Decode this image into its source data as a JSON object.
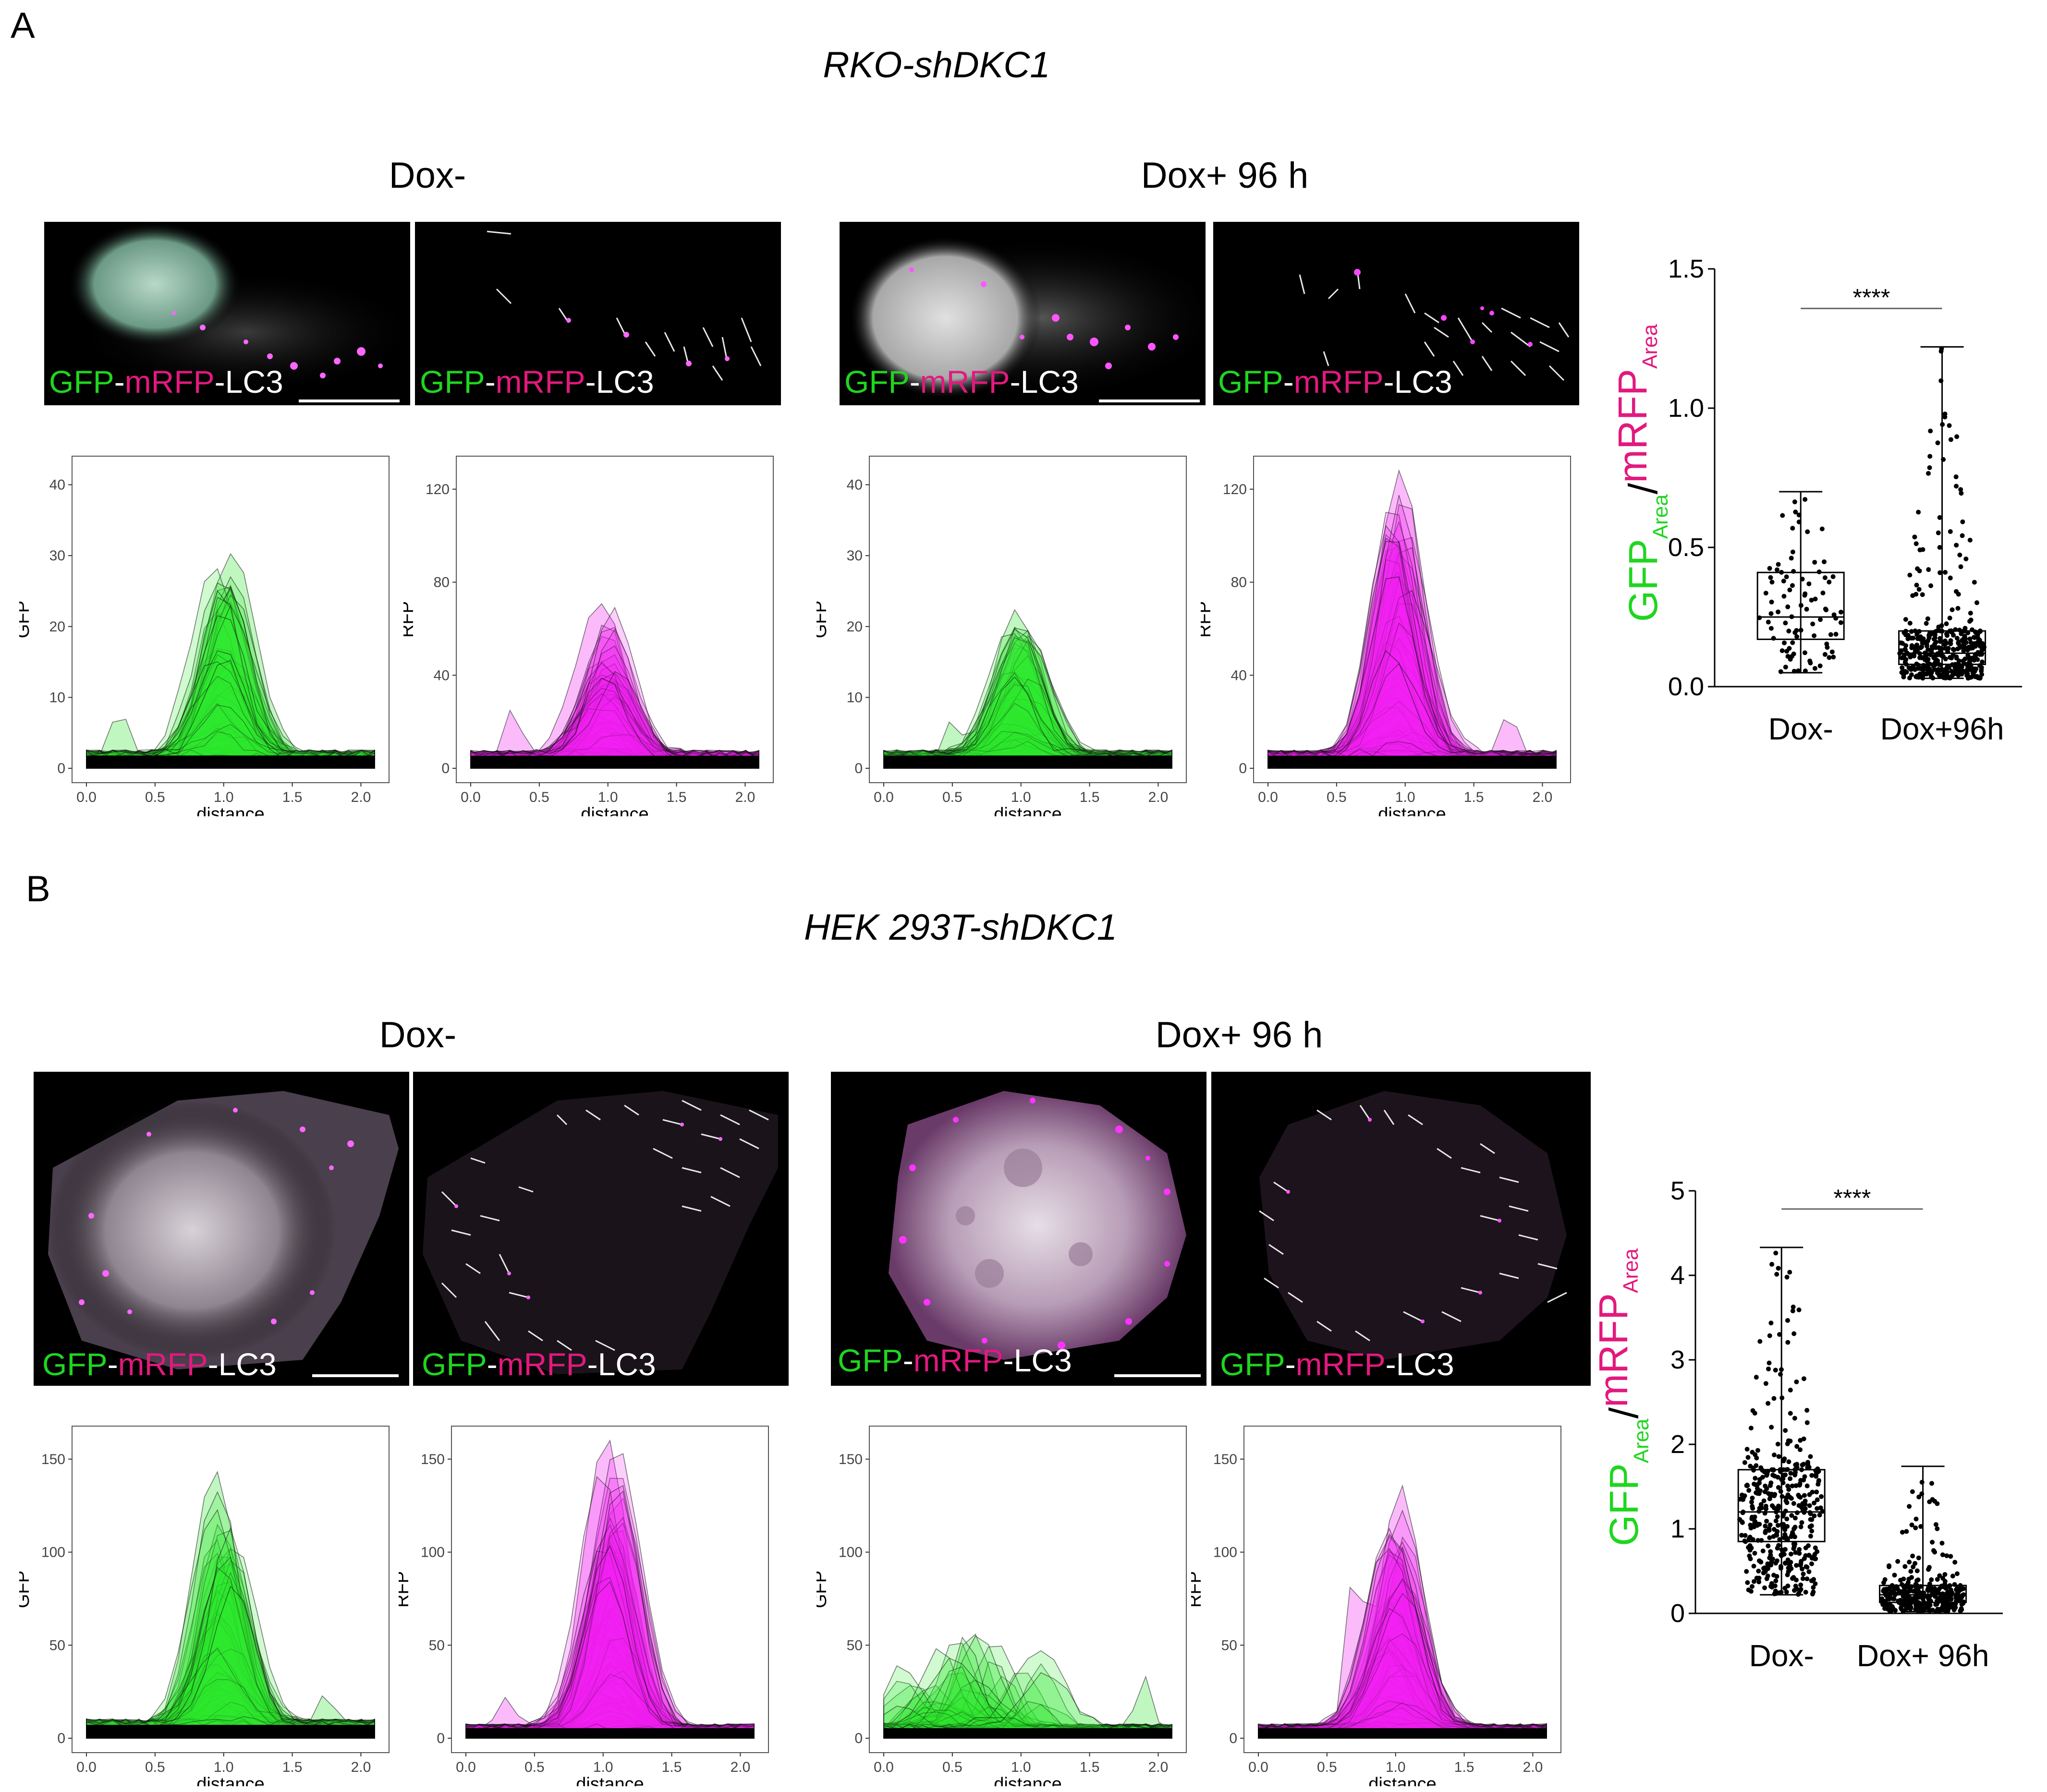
{
  "panels": [
    {
      "letter": "A",
      "cell_line": "RKO-shDKC1",
      "conditions": [
        {
          "title": "Dox-"
        },
        {
          "title": "Dox+ 96 h"
        }
      ],
      "micro_label": {
        "gfp": "GFP",
        "sep1": "-",
        "mrfp": "mRFP",
        "sep2": "-",
        "lc3": "LC3"
      }
    },
    {
      "letter": "B",
      "cell_line": "HEK 293T-shDKC1",
      "conditions": [
        {
          "title": "Dox-"
        },
        {
          "title": "Dox+ 96 h"
        }
      ],
      "micro_label": {
        "gfp": "GFP",
        "sep1": "-",
        "mrfp": "mRFP",
        "sep2": "-",
        "lc3": "LC3"
      }
    }
  ],
  "colors": {
    "gfp": "#1fd61f",
    "mrfp": "#e2197e",
    "rfp_fill": "#f21ef2",
    "gfp_fill": "#2ee62e"
  },
  "chart_data": [
    {
      "id": "A-dox-minus-gfp",
      "type": "area",
      "xlabel": "distance",
      "ylabel": "GFP",
      "xlim": [
        0,
        2.1
      ],
      "ylim": [
        0,
        42
      ],
      "xticks": [
        0.0,
        0.5,
        1.0,
        1.5,
        2.0
      ],
      "yticks": [
        0,
        10,
        20,
        30,
        40
      ],
      "channel": "gfp",
      "n_curves": 70,
      "peak_x": 1.0,
      "envelope_peak": 29,
      "side_bump": [
        0.25,
        7
      ],
      "baseline": 2
    },
    {
      "id": "A-dox-minus-rfp",
      "type": "area",
      "xlabel": "distance",
      "ylabel": "RFP",
      "xlim": [
        0,
        2.1
      ],
      "ylim": [
        0,
        128
      ],
      "xticks": [
        0.0,
        0.5,
        1.0,
        1.5,
        2.0
      ],
      "yticks": [
        0,
        40,
        80,
        120
      ],
      "channel": "rfp",
      "n_curves": 70,
      "peak_x": 1.0,
      "envelope_peak": 67,
      "side_bump": [
        0.3,
        22
      ],
      "baseline": 6
    },
    {
      "id": "A-dox-plus-gfp",
      "type": "area",
      "xlabel": "distance",
      "ylabel": "GFP",
      "xlim": [
        0,
        2.1
      ],
      "ylim": [
        0,
        42
      ],
      "xticks": [
        0.0,
        0.5,
        1.0,
        1.5,
        2.0
      ],
      "yticks": [
        0,
        10,
        20,
        30,
        40
      ],
      "channel": "gfp",
      "n_curves": 70,
      "peak_x": 1.0,
      "envelope_peak": 20,
      "side_bump": [
        0.5,
        4
      ],
      "baseline": 2
    },
    {
      "id": "A-dox-plus-rfp",
      "type": "area",
      "xlabel": "distance",
      "ylabel": "RFP",
      "xlim": [
        0,
        2.1
      ],
      "ylim": [
        0,
        128
      ],
      "xticks": [
        0.0,
        0.5,
        1.0,
        1.5,
        2.0
      ],
      "yticks": [
        0,
        40,
        80,
        120
      ],
      "channel": "rfp",
      "n_curves": 160,
      "peak_x": 0.95,
      "envelope_peak": 122,
      "side_bump": [
        1.75,
        20
      ],
      "baseline": 6
    },
    {
      "id": "A-ratio",
      "type": "box",
      "ylabel": "GFPArea/mRFPArea",
      "ylim": [
        0,
        1.5
      ],
      "yticks": [
        0.0,
        0.5,
        1.0,
        1.5
      ],
      "significance": "****",
      "groups": [
        {
          "name": "Dox-",
          "q1": 0.17,
          "median": 0.25,
          "q3": 0.41,
          "min": 0.05,
          "max": 0.7,
          "n": 90
        },
        {
          "name": "Dox+96h",
          "q1": 0.08,
          "median": 0.12,
          "q3": 0.2,
          "min": 0.03,
          "max": 1.22,
          "n": 400
        }
      ]
    },
    {
      "id": "B-dox-minus-gfp",
      "type": "area",
      "xlabel": "distance",
      "ylabel": "GFP",
      "xlim": [
        0,
        2.1
      ],
      "ylim": [
        0,
        160
      ],
      "xticks": [
        0.0,
        0.5,
        1.0,
        1.5,
        2.0
      ],
      "yticks": [
        0,
        50,
        100,
        150
      ],
      "channel": "gfp",
      "n_curves": 90,
      "peak_x": 1.0,
      "envelope_peak": 138,
      "side_bump": [
        1.75,
        20
      ],
      "baseline": 8
    },
    {
      "id": "B-dox-minus-rfp",
      "type": "area",
      "xlabel": "distance",
      "ylabel": "RFP",
      "xlim": [
        0,
        2.1
      ],
      "ylim": [
        0,
        160
      ],
      "xticks": [
        0.0,
        0.5,
        1.0,
        1.5,
        2.0
      ],
      "yticks": [
        0,
        50,
        100,
        150
      ],
      "channel": "rfp",
      "n_curves": 90,
      "peak_x": 1.05,
      "envelope_peak": 158,
      "side_bump": [
        0.3,
        15
      ],
      "baseline": 6
    },
    {
      "id": "B-dox-plus-gfp",
      "type": "area",
      "xlabel": "distance",
      "ylabel": "GFP",
      "xlim": [
        0,
        2.1
      ],
      "ylim": [
        0,
        160
      ],
      "xticks": [
        0.0,
        0.5,
        1.0,
        1.5,
        2.0
      ],
      "yticks": [
        0,
        50,
        100,
        150
      ],
      "channel": "gfp",
      "n_curves": 60,
      "peak_x": 0.6,
      "envelope_peak": 52,
      "side_bump": [
        1.9,
        30
      ],
      "baseline": 6,
      "flat": true
    },
    {
      "id": "B-dox-plus-rfp",
      "type": "area",
      "xlabel": "distance",
      "ylabel": "RFP",
      "xlim": [
        0,
        2.1
      ],
      "ylim": [
        0,
        160
      ],
      "xticks": [
        0.0,
        0.5,
        1.0,
        1.5,
        2.0
      ],
      "yticks": [
        0,
        50,
        100,
        150
      ],
      "channel": "rfp",
      "n_curves": 120,
      "peak_x": 1.0,
      "envelope_peak": 130,
      "side_bump": [
        0.7,
        80
      ],
      "baseline": 6
    },
    {
      "id": "B-ratio",
      "type": "box",
      "ylabel": "GFPArea/mRFPArea",
      "ylim": [
        0,
        5
      ],
      "yticks": [
        0,
        1,
        2,
        3,
        4,
        5
      ],
      "significance": "****",
      "groups": [
        {
          "name": "Dox-",
          "q1": 0.85,
          "median": 1.2,
          "q3": 1.7,
          "min": 0.22,
          "max": 4.33,
          "n": 420
        },
        {
          "name": "Dox+ 96h",
          "q1": 0.13,
          "median": 0.22,
          "q3": 0.33,
          "min": 0.02,
          "max": 1.74,
          "n": 350
        }
      ]
    }
  ]
}
